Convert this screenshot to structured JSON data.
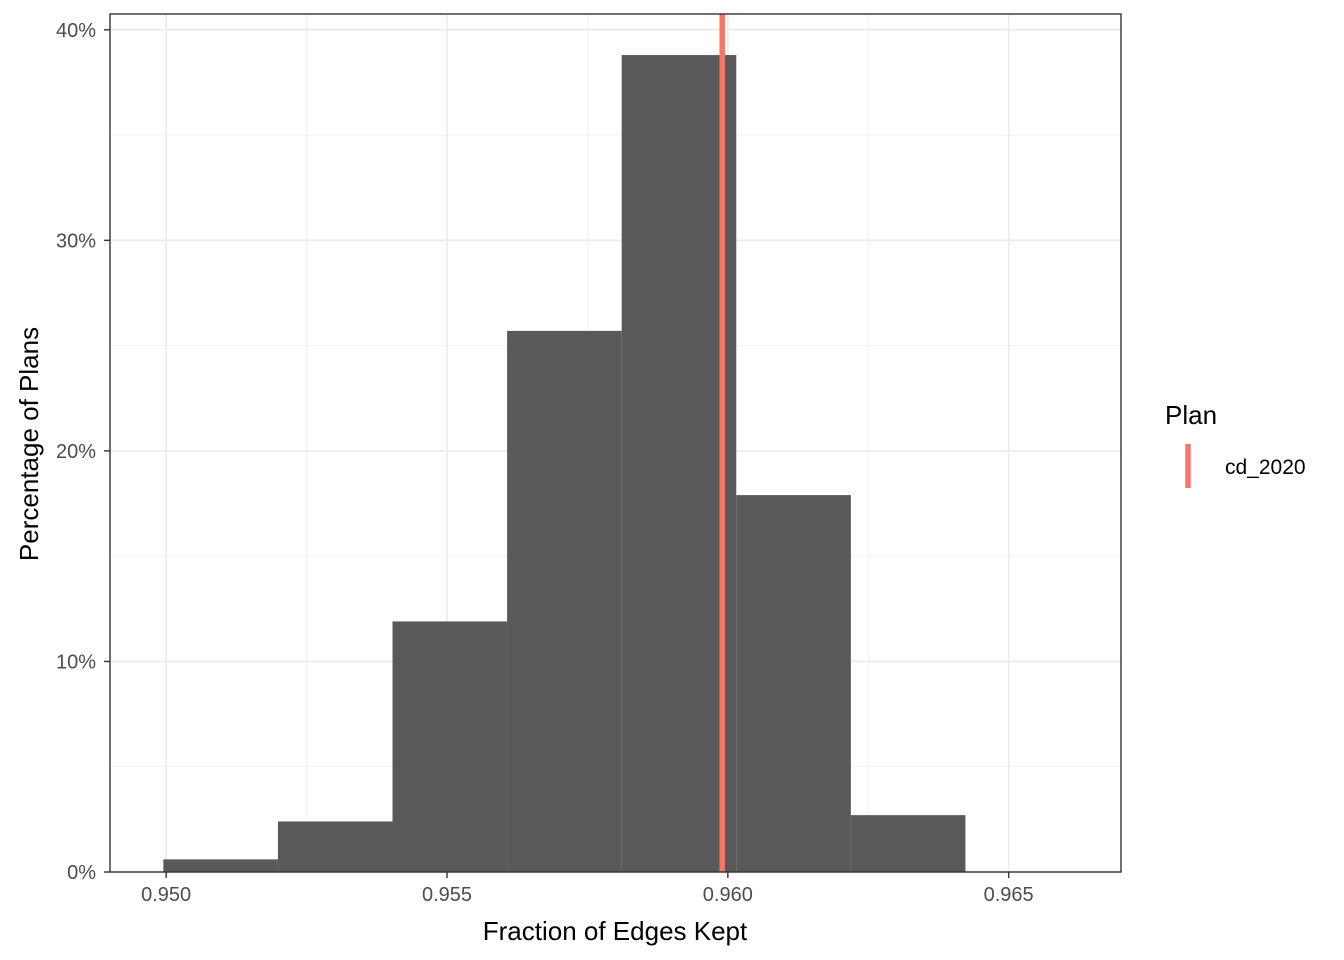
{
  "chart_data": {
    "type": "bar",
    "subtype": "histogram",
    "title": "",
    "xlabel": "Fraction of Edges Kept",
    "ylabel": "Percentage of Plans",
    "xlim": [
      0.949,
      0.967
    ],
    "ylim": [
      0,
      0.4075
    ],
    "x_ticks": [
      0.95,
      0.955,
      0.96,
      0.965
    ],
    "x_tick_labels": [
      "0.950",
      "0.955",
      "0.960",
      "0.965"
    ],
    "y_ticks": [
      0,
      0.1,
      0.2,
      0.3,
      0.4
    ],
    "y_tick_labels": [
      "0%",
      "10%",
      "20%",
      "30%",
      "40%"
    ],
    "grid": true,
    "bar_color": "#595959",
    "bins": [
      {
        "x0": 0.94995,
        "x1": 0.95199,
        "value": 0.006
      },
      {
        "x0": 0.95199,
        "x1": 0.95403,
        "value": 0.024
      },
      {
        "x0": 0.95403,
        "x1": 0.95607,
        "value": 0.119
      },
      {
        "x0": 0.95607,
        "x1": 0.95811,
        "value": 0.257
      },
      {
        "x0": 0.95811,
        "x1": 0.96015,
        "value": 0.388
      },
      {
        "x0": 0.96015,
        "x1": 0.96219,
        "value": 0.179
      },
      {
        "x0": 0.96219,
        "x1": 0.96423,
        "value": 0.027
      }
    ],
    "reference_lines": [
      {
        "name": "cd_2020",
        "x": 0.9599,
        "color": "#f8766d"
      }
    ],
    "legend": {
      "title": "Plan",
      "placement": "right",
      "entries": [
        {
          "label": "cd_2020",
          "color": "#f8766d"
        }
      ]
    }
  }
}
